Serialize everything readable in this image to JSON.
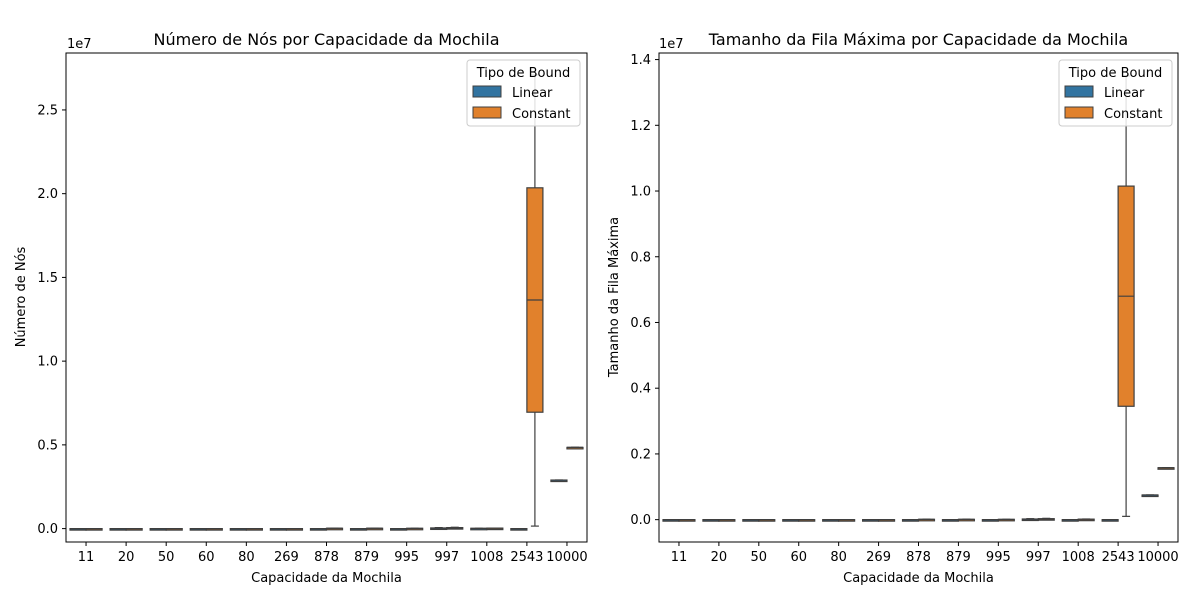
{
  "colors": {
    "linear": "#3274a1",
    "constant": "#e1812c",
    "edge": "#3f3f3f",
    "axis": "#000000",
    "background": "#ffffff"
  },
  "chart_data": [
    {
      "type": "box",
      "title": "Número de Nós por Capacidade da Mochila",
      "xlabel": "Capacidade da Mochila",
      "ylabel": "Número de Nós",
      "offset_text": "1e7",
      "categories": [
        "11",
        "20",
        "50",
        "60",
        "80",
        "269",
        "878",
        "879",
        "995",
        "997",
        "1008",
        "2543",
        "10000"
      ],
      "ylim": [
        -800000,
        28400000
      ],
      "yticks": [
        0,
        5000000,
        10000000,
        15000000,
        20000000,
        25000000
      ],
      "ytick_labels": [
        "0.0",
        "0.5",
        "1.0",
        "1.5",
        "2.0",
        "2.5"
      ],
      "grid": false,
      "legend": {
        "title": "Tipo de Bound",
        "placement": "top-right",
        "entries": [
          "Linear",
          "Constant"
        ]
      },
      "series": [
        {
          "name": "Linear",
          "boxes": [
            {
              "category": "11",
              "min": 0,
              "q1": 0,
              "median": 0,
              "q3": 0,
              "max": 0
            },
            {
              "category": "20",
              "min": 0,
              "q1": 0,
              "median": 0,
              "q3": 0,
              "max": 0
            },
            {
              "category": "50",
              "min": 0,
              "q1": 0,
              "median": 0,
              "q3": 0,
              "max": 0
            },
            {
              "category": "60",
              "min": 0,
              "q1": 0,
              "median": 0,
              "q3": 0,
              "max": 0
            },
            {
              "category": "80",
              "min": 0,
              "q1": 0,
              "median": 0,
              "q3": 0,
              "max": 0
            },
            {
              "category": "269",
              "min": 0,
              "q1": 0,
              "median": 0,
              "q3": 0,
              "max": 0
            },
            {
              "category": "878",
              "min": 0,
              "q1": 0,
              "median": 0,
              "q3": 0,
              "max": 0
            },
            {
              "category": "879",
              "min": 0,
              "q1": 0,
              "median": 0,
              "q3": 0,
              "max": 0
            },
            {
              "category": "995",
              "min": 0,
              "q1": 0,
              "median": 0,
              "q3": 0,
              "max": 0
            },
            {
              "category": "997",
              "min": 0,
              "q1": 0,
              "median": 20000,
              "q3": 40000,
              "max": 60000
            },
            {
              "category": "1008",
              "min": 0,
              "q1": 0,
              "median": 10000,
              "q3": 20000,
              "max": 20000
            },
            {
              "category": "2543",
              "min": 0,
              "q1": 0,
              "median": 0,
              "q3": 0,
              "max": 0
            },
            {
              "category": "10000",
              "min": 2900000,
              "q1": 2900000,
              "median": 2900000,
              "q3": 2900000,
              "max": 2900000
            }
          ]
        },
        {
          "name": "Constant",
          "boxes": [
            {
              "category": "11",
              "min": 0,
              "q1": 0,
              "median": 0,
              "q3": 0,
              "max": 0
            },
            {
              "category": "20",
              "min": 0,
              "q1": 0,
              "median": 0,
              "q3": 0,
              "max": 0
            },
            {
              "category": "50",
              "min": 0,
              "q1": 0,
              "median": 0,
              "q3": 0,
              "max": 0
            },
            {
              "category": "60",
              "min": 0,
              "q1": 0,
              "median": 0,
              "q3": 0,
              "max": 0
            },
            {
              "category": "80",
              "min": 0,
              "q1": 0,
              "median": 0,
              "q3": 0,
              "max": 0
            },
            {
              "category": "269",
              "min": 0,
              "q1": 0,
              "median": 0,
              "q3": 0,
              "max": 0
            },
            {
              "category": "878",
              "min": 20000,
              "q1": 20000,
              "median": 20000,
              "q3": 20000,
              "max": 20000
            },
            {
              "category": "879",
              "min": 20000,
              "q1": 20000,
              "median": 20000,
              "q3": 20000,
              "max": 20000
            },
            {
              "category": "995",
              "min": 0,
              "q1": 0,
              "median": 10000,
              "q3": 20000,
              "max": 20000
            },
            {
              "category": "997",
              "min": 0,
              "q1": 20000,
              "median": 40000,
              "q3": 60000,
              "max": 80000
            },
            {
              "category": "1008",
              "min": 0,
              "q1": 10000,
              "median": 20000,
              "q3": 30000,
              "max": 30000
            },
            {
              "category": "2543",
              "min": 150000,
              "q1": 6950000,
              "median": 13650000,
              "q3": 20350000,
              "max": 27100000
            },
            {
              "category": "10000",
              "min": 4850000,
              "q1": 4850000,
              "median": 4850000,
              "q3": 4850000,
              "max": 4850000
            }
          ]
        }
      ]
    },
    {
      "type": "box",
      "title": "Tamanho da Fila Máxima por Capacidade da Mochila",
      "xlabel": "Capacidade da Mochila",
      "ylabel": "Tamanho da Fila Máxima",
      "offset_text": "1e7",
      "categories": [
        "11",
        "20",
        "50",
        "60",
        "80",
        "269",
        "878",
        "879",
        "995",
        "997",
        "1008",
        "2543",
        "10000"
      ],
      "ylim": [
        -680000,
        14200000
      ],
      "yticks": [
        0,
        2000000,
        4000000,
        6000000,
        8000000,
        10000000,
        12000000,
        14000000
      ],
      "ytick_labels": [
        "0.0",
        "0.2",
        "0.4",
        "0.6",
        "0.8",
        "1.0",
        "1.2",
        "1.4"
      ],
      "grid": false,
      "legend": {
        "title": "Tipo de Bound",
        "placement": "top-right",
        "entries": [
          "Linear",
          "Constant"
        ]
      },
      "series": [
        {
          "name": "Linear",
          "boxes": [
            {
              "category": "11",
              "min": 0,
              "q1": 0,
              "median": 0,
              "q3": 0,
              "max": 0
            },
            {
              "category": "20",
              "min": 0,
              "q1": 0,
              "median": 0,
              "q3": 0,
              "max": 0
            },
            {
              "category": "50",
              "min": 0,
              "q1": 0,
              "median": 0,
              "q3": 0,
              "max": 0
            },
            {
              "category": "60",
              "min": 0,
              "q1": 0,
              "median": 0,
              "q3": 0,
              "max": 0
            },
            {
              "category": "80",
              "min": 0,
              "q1": 0,
              "median": 0,
              "q3": 0,
              "max": 0
            },
            {
              "category": "269",
              "min": 0,
              "q1": 0,
              "median": 0,
              "q3": 0,
              "max": 0
            },
            {
              "category": "878",
              "min": 0,
              "q1": 0,
              "median": 0,
              "q3": 0,
              "max": 0
            },
            {
              "category": "879",
              "min": 0,
              "q1": 0,
              "median": 0,
              "q3": 0,
              "max": 0
            },
            {
              "category": "995",
              "min": 0,
              "q1": 0,
              "median": 0,
              "q3": 0,
              "max": 0
            },
            {
              "category": "997",
              "min": 0,
              "q1": 0,
              "median": 10000,
              "q3": 20000,
              "max": 30000
            },
            {
              "category": "1008",
              "min": 0,
              "q1": 0,
              "median": 0,
              "q3": 0,
              "max": 0
            },
            {
              "category": "2543",
              "min": 0,
              "q1": 0,
              "median": 0,
              "q3": 0,
              "max": 0
            },
            {
              "category": "10000",
              "min": 750000,
              "q1": 750000,
              "median": 750000,
              "q3": 750000,
              "max": 750000
            }
          ]
        },
        {
          "name": "Constant",
          "boxes": [
            {
              "category": "11",
              "min": 0,
              "q1": 0,
              "median": 0,
              "q3": 0,
              "max": 0
            },
            {
              "category": "20",
              "min": 0,
              "q1": 0,
              "median": 0,
              "q3": 0,
              "max": 0
            },
            {
              "category": "50",
              "min": 0,
              "q1": 0,
              "median": 0,
              "q3": 0,
              "max": 0
            },
            {
              "category": "60",
              "min": 0,
              "q1": 0,
              "median": 0,
              "q3": 0,
              "max": 0
            },
            {
              "category": "80",
              "min": 0,
              "q1": 0,
              "median": 0,
              "q3": 0,
              "max": 0
            },
            {
              "category": "269",
              "min": 0,
              "q1": 0,
              "median": 0,
              "q3": 0,
              "max": 0
            },
            {
              "category": "878",
              "min": 10000,
              "q1": 10000,
              "median": 10000,
              "q3": 10000,
              "max": 10000
            },
            {
              "category": "879",
              "min": 10000,
              "q1": 10000,
              "median": 10000,
              "q3": 10000,
              "max": 10000
            },
            {
              "category": "995",
              "min": 0,
              "q1": 0,
              "median": 5000,
              "q3": 10000,
              "max": 10000
            },
            {
              "category": "997",
              "min": 0,
              "q1": 10000,
              "median": 20000,
              "q3": 30000,
              "max": 40000
            },
            {
              "category": "1008",
              "min": 0,
              "q1": 5000,
              "median": 10000,
              "q3": 15000,
              "max": 20000
            },
            {
              "category": "2543",
              "min": 100000,
              "q1": 3450000,
              "median": 6800000,
              "q3": 10150000,
              "max": 13500000
            },
            {
              "category": "10000",
              "min": 1580000,
              "q1": 1580000,
              "median": 1580000,
              "q3": 1580000,
              "max": 1580000
            }
          ]
        }
      ]
    }
  ]
}
